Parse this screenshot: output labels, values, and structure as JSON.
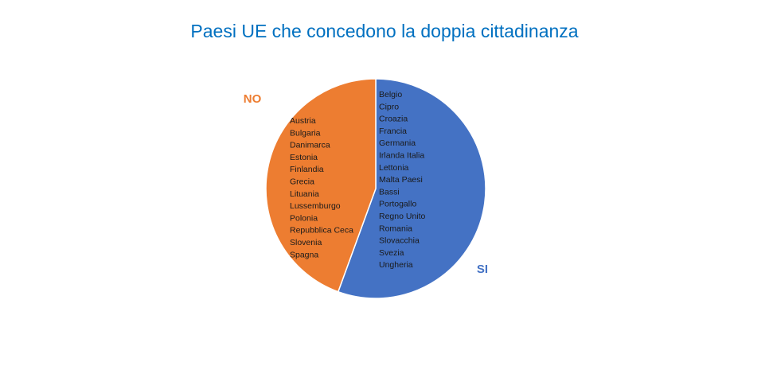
{
  "chart_data": {
    "type": "pie",
    "title": "Paesi UE che concedono la doppia cittadinanza",
    "slices": [
      {
        "name": "SI",
        "value": 15,
        "color": "#4472C4",
        "countries": [
          "Belgio",
          "Cipro",
          "Croazia",
          "Francia",
          "Germania",
          "Irlanda Italia",
          "Lettonia",
          "Malta Paesi",
          "Bassi",
          "Portogallo",
          "Regno Unito",
          "Romania",
          "Slovacchia",
          "Svezia",
          "Ungheria"
        ]
      },
      {
        "name": "NO",
        "value": 12,
        "color": "#ED7D31",
        "countries": [
          "Austria",
          "Bulgaria",
          "Danimarca",
          "Estonia",
          "Finlandia",
          "Grecia",
          "Lituania",
          "Lussemburgo",
          "Polonia",
          "Repubblica Ceca",
          "Slovenia",
          "Spagna"
        ]
      }
    ]
  }
}
